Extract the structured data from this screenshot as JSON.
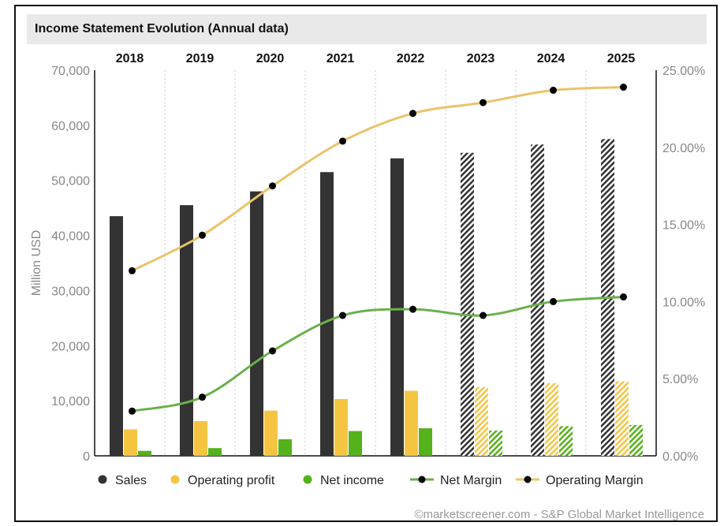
{
  "title": "Income Statement Evolution (Annual data)",
  "watermark": "©marketscreener.com - S&P Global Market Intelligence",
  "chart_data": {
    "type": "bar",
    "categories": [
      "2018",
      "2019",
      "2020",
      "2021",
      "2022",
      "2023",
      "2024",
      "2025"
    ],
    "estimated_from_index": 5,
    "ylabel": "Million USD",
    "ylim": [
      0,
      70000
    ],
    "y_ticks": [
      "0",
      "10,000",
      "20,000",
      "30,000",
      "40,000",
      "50,000",
      "60,000",
      "70,000"
    ],
    "y2lim": [
      0,
      25
    ],
    "y2_ticks": [
      "0.00%",
      "5.00%",
      "10.00%",
      "15.00%",
      "20.00%",
      "25.00%"
    ],
    "grid": "vertical dotted",
    "legend_position": "bottom",
    "series": [
      {
        "name": "Sales",
        "kind": "bar",
        "axis": "left",
        "color": "#333333",
        "values": [
          43500,
          45500,
          48000,
          51500,
          54000,
          55000,
          56500,
          57500
        ]
      },
      {
        "name": "Operating profit",
        "kind": "bar",
        "axis": "left",
        "color": "#f5c542",
        "values": [
          4800,
          6300,
          8200,
          10300,
          11800,
          12500,
          13200,
          13500
        ]
      },
      {
        "name": "Net income",
        "kind": "bar",
        "axis": "left",
        "color": "#55b21a",
        "values": [
          900,
          1400,
          3000,
          4500,
          5000,
          4600,
          5400,
          5600
        ]
      },
      {
        "name": "Net Margin",
        "kind": "line",
        "axis": "right",
        "color": "#6ab04c",
        "values": [
          2.9,
          3.8,
          6.8,
          9.1,
          9.5,
          9.1,
          10.0,
          10.3
        ]
      },
      {
        "name": "Operating Margin",
        "kind": "line",
        "axis": "right",
        "color": "#eac36a",
        "values": [
          12.0,
          14.3,
          17.5,
          20.4,
          22.2,
          22.9,
          23.7,
          23.9
        ]
      }
    ]
  }
}
